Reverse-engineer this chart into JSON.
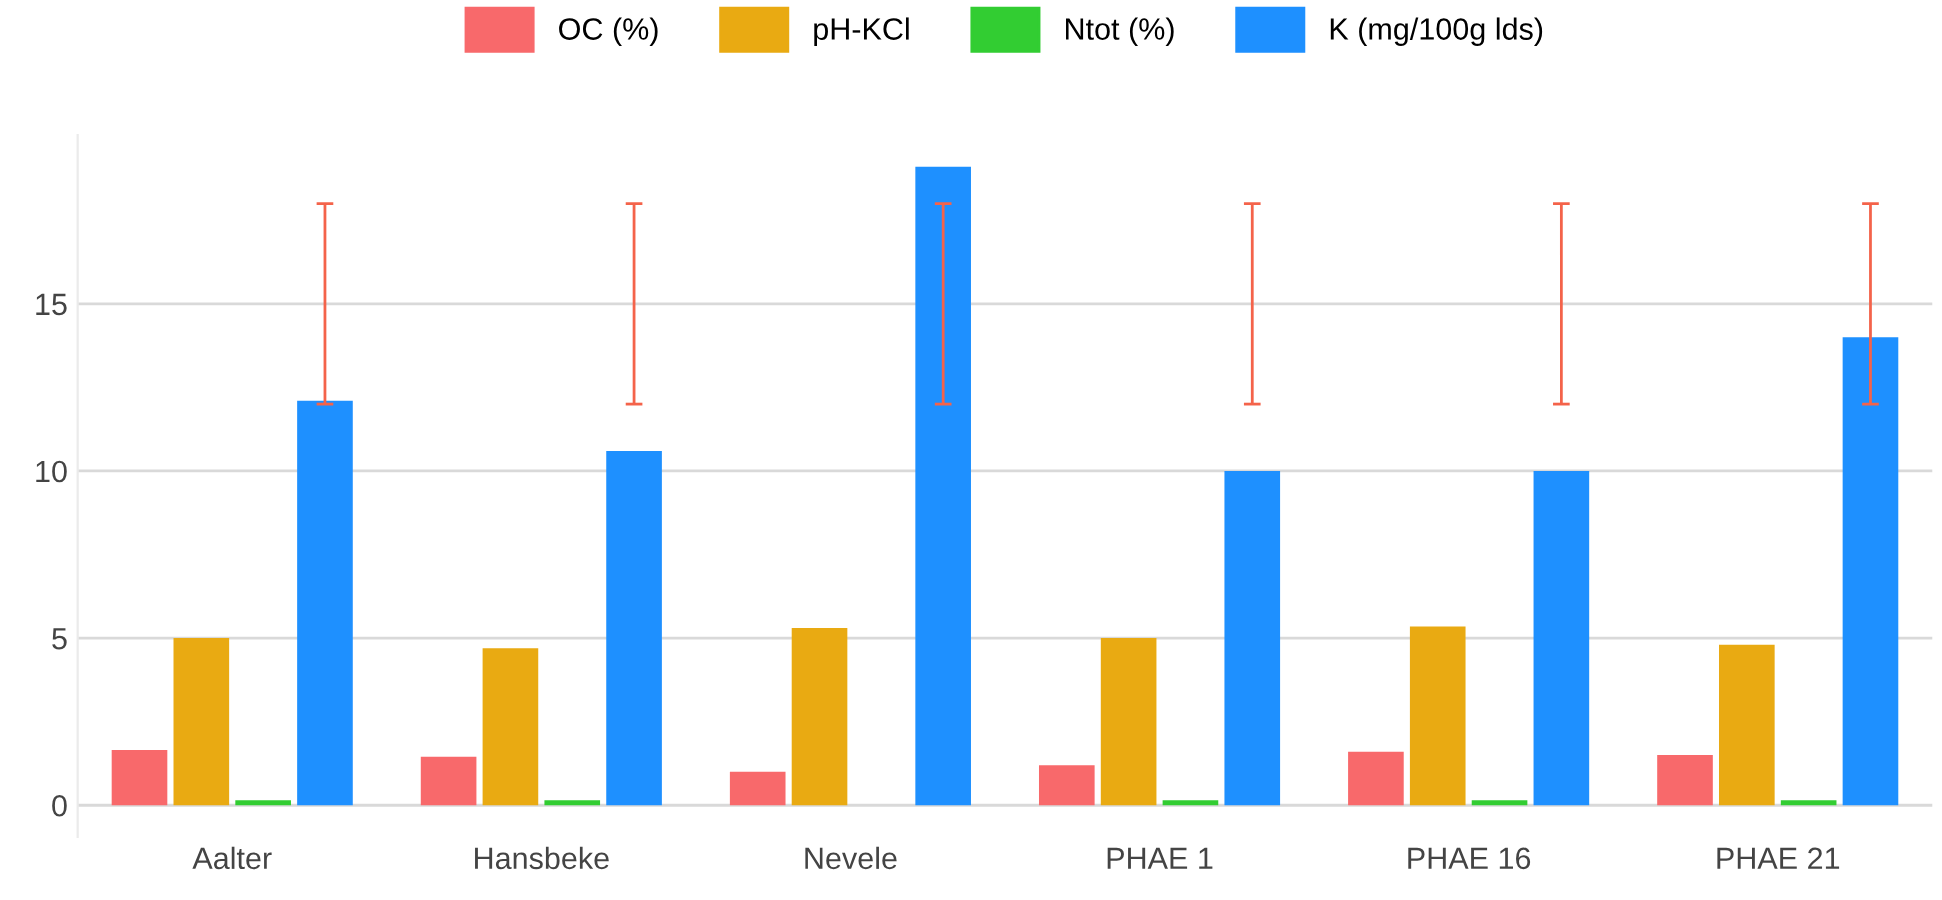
{
  "chart_data": {
    "type": "bar",
    "categories": [
      "Aalter",
      "Hansbeke",
      "Nevele",
      "PHAE 1",
      "PHAE 16",
      "PHAE 21"
    ],
    "series": [
      {
        "name": "OC (%)",
        "color": "#f8696b",
        "values": [
          1.65,
          1.45,
          1.0,
          1.2,
          1.6,
          1.5
        ]
      },
      {
        "name": "pH-KCl",
        "color": "#e9aa12",
        "values": [
          5.0,
          4.7,
          5.3,
          5.0,
          5.35,
          4.8
        ]
      },
      {
        "name": "Ntot (%)",
        "color": "#32cd32",
        "values": [
          0.15,
          0.15,
          null,
          0.15,
          0.15,
          0.15
        ]
      },
      {
        "name": "K (mg/100g lds)",
        "color": "#1e90ff",
        "values": [
          12.1,
          10.6,
          19.1,
          10.0,
          10.0,
          14.0
        ],
        "errors": [
          [
            12,
            18
          ],
          [
            12,
            18
          ],
          [
            12,
            18
          ],
          [
            12,
            18
          ],
          [
            12,
            18
          ],
          [
            12,
            18
          ]
        ]
      }
    ],
    "ylim": [
      -0.95,
      20.05
    ],
    "yticks": [
      0,
      5,
      10,
      15
    ],
    "grid": "y",
    "legend": "top"
  }
}
